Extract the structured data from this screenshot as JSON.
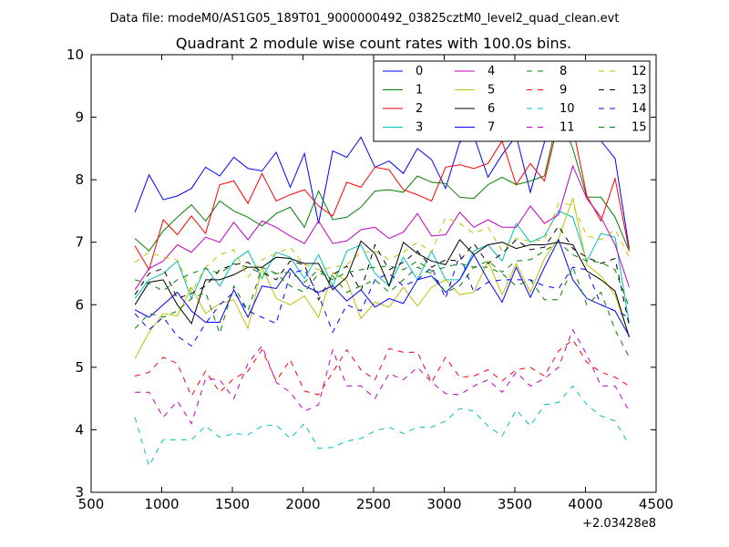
{
  "chart_data": {
    "type": "line",
    "suptitle": "Data file: modeM0/AS1G05_189T01_9000000492_03825cztM0_level2_quad_clean.evt",
    "title": "Quadrant 2 module wise count rates with 100.0s bins.",
    "xlabel": "",
    "ylabel": "",
    "x_offset_label": "+2.03428e8",
    "xlim": [
      500,
      4500
    ],
    "ylim": [
      3,
      10
    ],
    "xticks": [
      500,
      1000,
      1500,
      2000,
      2500,
      3000,
      3500,
      4000,
      4500
    ],
    "yticks": [
      3,
      4,
      5,
      6,
      7,
      8,
      9,
      10
    ],
    "grid": false,
    "legend_position": "top-right",
    "legend_columns": 4,
    "x": [
      810,
      910,
      1010,
      1110,
      1210,
      1310,
      1410,
      1510,
      1610,
      1710,
      1810,
      1910,
      2010,
      2110,
      2210,
      2310,
      2410,
      2510,
      2610,
      2710,
      2810,
      2910,
      3010,
      3110,
      3210,
      3310,
      3410,
      3510,
      3610,
      3710,
      3810,
      3910,
      4010,
      4110,
      4210,
      4310
    ],
    "series": [
      {
        "name": "0",
        "color": "#0000ff",
        "dash": "solid",
        "values": [
          7.48,
          8.08,
          7.68,
          7.74,
          7.86,
          8.2,
          8.06,
          8.36,
          8.18,
          8.14,
          8.44,
          7.88,
          8.42,
          7.3,
          8.46,
          8.36,
          8.68,
          8.2,
          8.3,
          8.1,
          8.5,
          8.32,
          7.86,
          8.6,
          8.7,
          8.04,
          8.4,
          8.7,
          7.8,
          8.6,
          8.9,
          9.06,
          8.76,
          8.62,
          8.34,
          6.9
        ]
      },
      {
        "name": "1",
        "color": "#008000",
        "dash": "solid",
        "values": [
          7.06,
          6.86,
          7.18,
          7.4,
          7.6,
          7.34,
          7.66,
          7.5,
          7.4,
          7.26,
          7.46,
          7.56,
          7.24,
          7.82,
          7.36,
          7.4,
          7.56,
          7.82,
          7.84,
          7.8,
          8.06,
          7.96,
          7.94,
          7.72,
          7.7,
          7.92,
          8.04,
          7.92,
          7.98,
          8.06,
          9.04,
          8.5,
          7.72,
          7.72,
          7.4,
          6.86
        ]
      },
      {
        "name": "2",
        "color": "#ff0000",
        "dash": "solid",
        "values": [
          6.94,
          6.56,
          7.36,
          7.12,
          7.42,
          7.14,
          7.92,
          7.98,
          7.62,
          8.1,
          7.66,
          7.76,
          7.84,
          7.58,
          7.42,
          7.96,
          7.88,
          8.2,
          8.16,
          7.84,
          7.76,
          7.66,
          8.2,
          8.24,
          8.18,
          8.26,
          8.62,
          7.92,
          8.26,
          7.98,
          8.94,
          8.84,
          7.74,
          7.34,
          8.02,
          6.86
        ]
      },
      {
        "name": "3",
        "color": "#00bfbf",
        "dash": "solid",
        "values": [
          6.1,
          6.4,
          6.5,
          6.7,
          6.1,
          6.6,
          6.3,
          6.7,
          6.86,
          6.42,
          6.84,
          6.76,
          6.42,
          6.8,
          6.3,
          6.86,
          6.96,
          6.5,
          6.3,
          6.76,
          6.4,
          6.86,
          6.4,
          6.4,
          6.86,
          6.96,
          6.7,
          7.3,
          7.0,
          7.1,
          7.5,
          7.4,
          6.7,
          7.14,
          7.08,
          5.7
        ]
      },
      {
        "name": "4",
        "color": "#bf00bf",
        "dash": "solid",
        "values": [
          6.24,
          6.58,
          6.7,
          6.96,
          6.84,
          7.08,
          7.0,
          7.32,
          7.04,
          7.34,
          7.24,
          7.1,
          6.98,
          7.34,
          6.98,
          7.02,
          7.2,
          7.24,
          7.06,
          7.16,
          7.46,
          7.1,
          7.12,
          7.48,
          7.24,
          7.36,
          7.24,
          7.24,
          7.58,
          7.3,
          7.44,
          8.22,
          7.7,
          7.4,
          6.96,
          6.28
        ]
      },
      {
        "name": "5",
        "color": "#bfbf00",
        "dash": "solid",
        "values": [
          5.14,
          5.56,
          5.86,
          5.82,
          6.28,
          5.86,
          6.02,
          6.08,
          5.62,
          6.6,
          6.1,
          6.0,
          6.14,
          5.8,
          6.52,
          6.38,
          5.78,
          6.04,
          5.96,
          6.28,
          5.98,
          6.28,
          6.4,
          6.16,
          6.2,
          6.7,
          6.16,
          6.66,
          6.2,
          6.74,
          7.06,
          7.7,
          6.64,
          6.46,
          6.16,
          5.5
        ]
      },
      {
        "name": "6",
        "color": "#000000",
        "dash": "solid",
        "values": [
          6.0,
          6.36,
          6.4,
          6.0,
          5.7,
          6.4,
          6.4,
          6.48,
          6.6,
          6.6,
          6.76,
          6.74,
          6.66,
          6.66,
          6.24,
          6.44,
          7.02,
          6.82,
          6.3,
          7.0,
          6.82,
          6.7,
          6.64,
          7.04,
          6.8,
          6.96,
          7.0,
          6.9,
          6.96,
          6.96,
          7.0,
          6.96,
          6.54,
          6.4,
          6.22,
          5.48
        ]
      },
      {
        "name": "7",
        "color": "#0000ff",
        "dash": "solid",
        "values": [
          5.92,
          5.8,
          6.0,
          6.2,
          5.9,
          5.72,
          5.72,
          6.24,
          5.8,
          6.3,
          6.26,
          6.58,
          6.3,
          6.2,
          6.3,
          6.06,
          6.24,
          5.96,
          6.1,
          6.02,
          6.4,
          6.46,
          6.2,
          6.4,
          6.8,
          6.4,
          6.04,
          6.6,
          6.12,
          6.6,
          7.04,
          6.4,
          6.1,
          6.0,
          5.9,
          5.5
        ]
      },
      {
        "name": "8",
        "color": "#008000",
        "dash": "dashed",
        "values": [
          5.62,
          5.86,
          5.8,
          5.9,
          6.1,
          6.2,
          5.54,
          6.3,
          5.9,
          6.6,
          6.5,
          6.3,
          6.2,
          6.5,
          6.46,
          6.2,
          6.3,
          6.4,
          6.2,
          6.4,
          6.6,
          6.5,
          6.2,
          6.3,
          6.6,
          6.6,
          6.5,
          6.3,
          6.4,
          6.08,
          6.08,
          6.6,
          6.0,
          6.2,
          5.6,
          5.16
        ]
      },
      {
        "name": "9",
        "color": "#ff0000",
        "dash": "dashed",
        "values": [
          4.86,
          4.92,
          5.16,
          5.06,
          4.54,
          4.94,
          4.6,
          4.82,
          4.94,
          5.28,
          4.78,
          5.12,
          4.62,
          4.56,
          4.92,
          5.28,
          4.96,
          4.8,
          5.3,
          5.24,
          5.24,
          4.76,
          5.16,
          4.84,
          4.86,
          4.96,
          4.78,
          4.96,
          5.0,
          4.86,
          5.26,
          5.44,
          5.08,
          4.92,
          4.84,
          4.7
        ]
      },
      {
        "name": "10",
        "color": "#00bfbf",
        "dash": "dashed",
        "values": [
          4.2,
          3.42,
          3.84,
          3.84,
          3.84,
          4.06,
          3.88,
          3.94,
          3.92,
          4.06,
          4.08,
          3.86,
          4.1,
          3.7,
          3.72,
          3.82,
          3.86,
          3.98,
          4.04,
          3.94,
          4.04,
          4.04,
          4.14,
          4.34,
          4.3,
          4.06,
          3.9,
          4.32,
          4.06,
          4.4,
          4.44,
          4.7,
          4.4,
          4.22,
          4.14,
          3.76
        ]
      },
      {
        "name": "11",
        "color": "#bf00bf",
        "dash": "dashed",
        "values": [
          4.6,
          4.6,
          4.2,
          4.46,
          4.1,
          4.82,
          4.8,
          4.5,
          5.06,
          5.34,
          4.76,
          4.6,
          4.3,
          4.4,
          5.28,
          4.7,
          4.7,
          4.5,
          4.9,
          4.8,
          5.0,
          4.76,
          4.58,
          4.56,
          4.7,
          4.8,
          4.6,
          4.92,
          4.7,
          4.82,
          5.0,
          5.6,
          5.2,
          4.7,
          4.7,
          4.3
        ]
      },
      {
        "name": "12",
        "color": "#bfbf00",
        "dash": "dashed",
        "values": [
          6.68,
          6.84,
          6.76,
          6.72,
          6.2,
          6.6,
          6.8,
          6.88,
          6.44,
          6.72,
          6.82,
          6.92,
          6.64,
          6.56,
          6.6,
          6.64,
          6.84,
          6.86,
          6.72,
          6.84,
          7.0,
          6.84,
          7.4,
          7.3,
          7.14,
          7.24,
          6.86,
          7.06,
          7.02,
          7.04,
          7.62,
          7.6,
          7.1,
          7.04,
          7.2,
          6.76
        ]
      },
      {
        "name": "13",
        "color": "#000000",
        "dash": "dashed",
        "values": [
          6.16,
          6.5,
          6.58,
          6.1,
          6.18,
          6.3,
          6.56,
          6.64,
          6.68,
          6.52,
          6.4,
          6.7,
          6.64,
          6.08,
          6.48,
          6.62,
          6.22,
          6.96,
          6.56,
          6.68,
          6.86,
          6.6,
          6.72,
          6.7,
          6.98,
          6.66,
          6.82,
          7.04,
          6.88,
          6.92,
          7.26,
          6.9,
          6.76,
          6.66,
          6.74,
          5.66
        ]
      },
      {
        "name": "14",
        "color": "#0000ff",
        "dash": "dashed",
        "values": [
          5.86,
          5.6,
          5.8,
          5.5,
          5.34,
          5.7,
          6.0,
          6.2,
          5.9,
          5.8,
          5.7,
          6.5,
          6.56,
          6.16,
          5.56,
          6.0,
          5.9,
          6.4,
          6.5,
          6.3,
          6.4,
          6.6,
          6.1,
          6.8,
          6.2,
          6.36,
          6.4,
          6.4,
          6.4,
          6.3,
          6.26,
          6.6,
          6.56,
          6.0,
          5.9,
          5.8
        ]
      },
      {
        "name": "15",
        "color": "#008000",
        "dash": "dashed",
        "values": [
          6.4,
          6.34,
          6.22,
          6.4,
          6.5,
          6.58,
          6.5,
          6.66,
          6.6,
          6.5,
          6.5,
          6.52,
          6.36,
          6.56,
          6.4,
          6.52,
          6.56,
          6.6,
          6.62,
          6.56,
          6.7,
          6.54,
          6.6,
          6.66,
          6.6,
          6.7,
          6.52,
          6.7,
          6.72,
          6.86,
          7.0,
          6.8,
          6.7,
          6.68,
          6.56,
          5.96
        ]
      }
    ]
  }
}
